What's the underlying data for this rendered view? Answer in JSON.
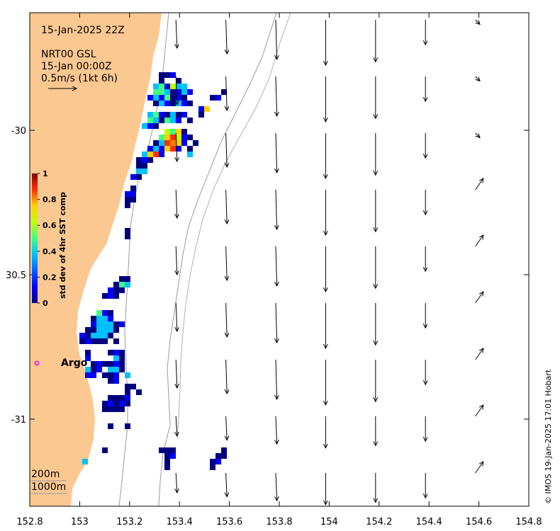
{
  "map": {
    "timestamp": "15-Jan-2025 22Z",
    "product": "NRT00 GSL",
    "valid_time": "15-Jan 00:00Z",
    "scale_label": "0.5m/s (1kt 6h)",
    "contour_labels": [
      "200m",
      "1000m"
    ],
    "credit": "© IMOS 19-Jan-2025 17:01 Hobart",
    "float_label": "Argo",
    "land_color": "#FCC892",
    "marker_color": "#E000E0",
    "x_ticks": [
      "152.8",
      "153",
      "153.2",
      "153.4",
      "153.6",
      "153.8",
      "154",
      "154.2",
      "154.4",
      "154.6",
      "154.8"
    ],
    "y_ticks": [
      "-30",
      "30.5",
      "-31"
    ]
  },
  "colorbar": {
    "label": "std dev of 4hr SST comp",
    "ticks": [
      "1",
      "0.8",
      "0.6",
      "0.4",
      "0.2",
      "0"
    ]
  },
  "chart_data": {
    "type": "map",
    "xlim": [
      152.8,
      154.8
    ],
    "ylim": [
      -31.3,
      -29.6
    ],
    "grid": false,
    "vectors": [
      {
        "lon": 153.4,
        "u": 0.01,
        "v": -0.25
      },
      {
        "lon": 153.6,
        "u": 0.01,
        "v": -0.3
      },
      {
        "lon": 153.8,
        "u": 0.01,
        "v": -0.35
      },
      {
        "lon": 154.0,
        "u": 0.0,
        "v": -0.4
      },
      {
        "lon": 154.2,
        "u": 0.0,
        "v": -0.37
      },
      {
        "lon": 154.4,
        "u": 0.0,
        "v": -0.22
      },
      {
        "lon": 154.6,
        "u": 0.05,
        "v": -0.05
      }
    ]
  }
}
